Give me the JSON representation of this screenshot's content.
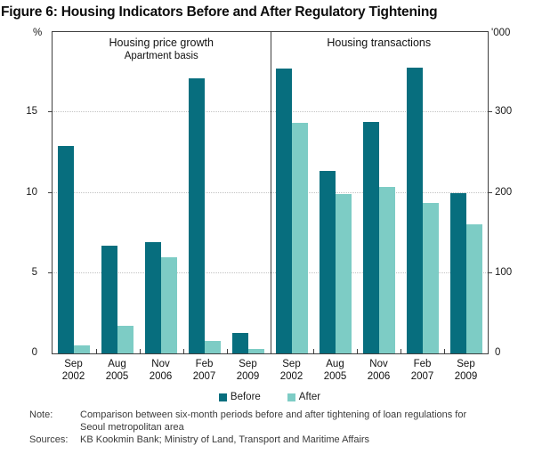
{
  "title": "Figure 6: Housing Indicators Before and After Regulatory Tightening",
  "axes": {
    "left_unit": "%",
    "right_unit": "'000"
  },
  "colors": {
    "before": "#076e7e",
    "after": "#7dccc5",
    "frame": "#3f3f3f",
    "gridline": "#c3c3c3"
  },
  "legend": {
    "position": "bottom-center",
    "items": [
      {
        "label": "Before",
        "color": "#076e7e"
      },
      {
        "label": "After",
        "color": "#7dccc5"
      }
    ]
  },
  "note": {
    "label": "Note:",
    "text": "Comparison between six-month periods before and after tightening of loan regulations for Seoul metropolitan area"
  },
  "sources": {
    "label": "Sources:",
    "text": "KB Kookmin Bank; Ministry of Land, Transport and Maritime Affairs"
  },
  "chart_data": [
    {
      "type": "bar",
      "title": "Housing price growth",
      "subtitle": "Apartment basis",
      "ylabel": "%",
      "ylim": [
        0,
        20
      ],
      "yticks": [
        0,
        5,
        10,
        15
      ],
      "grid": true,
      "categories": [
        "Sep 2002",
        "Aug 2005",
        "Nov 2006",
        "Feb 2007",
        "Sep 2009"
      ],
      "series": [
        {
          "name": "Before",
          "values": [
            12.9,
            6.7,
            6.9,
            17.1,
            1.3
          ]
        },
        {
          "name": "After",
          "values": [
            0.5,
            1.7,
            6.0,
            0.8,
            0.3
          ]
        }
      ]
    },
    {
      "type": "bar",
      "title": "Housing transactions",
      "subtitle": "",
      "ylabel": "'000",
      "ylim": [
        0,
        400
      ],
      "yticks": [
        0,
        100,
        200,
        300
      ],
      "grid": true,
      "categories": [
        "Sep 2002",
        "Aug 2005",
        "Nov 2006",
        "Feb 2007",
        "Sep 2009"
      ],
      "series": [
        {
          "name": "Before",
          "values": [
            355,
            227,
            288,
            356,
            199
          ]
        },
        {
          "name": "After",
          "values": [
            287,
            198,
            207,
            187,
            161
          ]
        }
      ]
    }
  ]
}
